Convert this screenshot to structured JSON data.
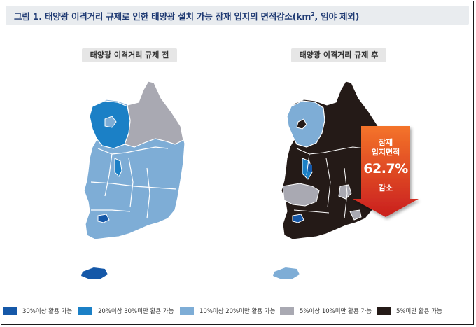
{
  "title": {
    "main": "그림 1. 태양광 이격거리 규제로 인한 태양광 설치 가능 잠재 입지의 면적감소(km",
    "sup": "2",
    "tail": ", 임야 제외)"
  },
  "maps": {
    "before_label": "태양광 이격거리 규제 전",
    "after_label": "태양광 이격거리 규제 후"
  },
  "callout": {
    "line1": "잠재",
    "line2": "입지면적",
    "value": "62.7%",
    "line3": "감소",
    "color_top": "#f4742a",
    "color_bottom": "#c91e1e"
  },
  "legend": [
    {
      "label": "30%이상 활용 가능",
      "color": "#1558a8"
    },
    {
      "label": "20%이상 30%미만 활용 가능",
      "color": "#1b80c6"
    },
    {
      "label": "10%이상 20%미만 활용 가능",
      "color": "#7eadd6"
    },
    {
      "label": "5%이상 10%미만 활용 가능",
      "color": "#a9a9b2"
    },
    {
      "label": "5%미만 활용 가능",
      "color": "#241a17"
    }
  ]
}
